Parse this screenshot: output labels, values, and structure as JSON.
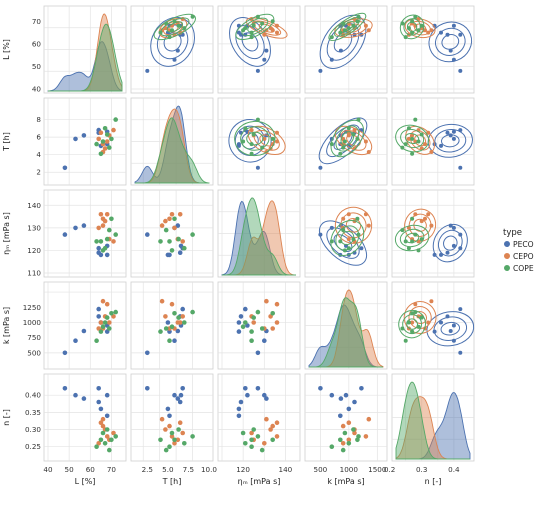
{
  "chart_data": {
    "type": "scatter",
    "plot_kind": "pair-grid",
    "variables": [
      {
        "key": "L",
        "label": "L [%]",
        "range": [
          40,
          75
        ],
        "ticks": [
          40,
          50,
          60,
          70
        ]
      },
      {
        "key": "T",
        "label": "T [h]",
        "range": [
          1,
          10
        ],
        "ticks": [
          2,
          4,
          6,
          8
        ]
      },
      {
        "key": "eta",
        "label": "ηₘ [mPa s]",
        "range": [
          110,
          145
        ],
        "ticks": [
          110,
          120,
          130,
          140
        ]
      },
      {
        "key": "k",
        "label": "k [mPa s]",
        "range": [
          300,
          1600
        ],
        "ticks": [
          500,
          1000,
          1500
        ]
      },
      {
        "key": "n",
        "label": "n [-]",
        "range": [
          0.22,
          0.45
        ],
        "ticks": [
          0.25,
          0.3,
          0.35,
          0.4
        ]
      }
    ],
    "bottom_ticks": {
      "L": [
        "40",
        "50",
        "60",
        "70"
      ],
      "T": [
        "2.5",
        "5.0",
        "7.5",
        "10.0"
      ],
      "eta": [
        "120",
        "140"
      ],
      "k": [
        "500",
        "1000",
        "1500"
      ],
      "n": [
        "0.2",
        "0.3",
        "0.4"
      ]
    },
    "left_ticks": {
      "L": [
        "40",
        "50",
        "60",
        "70"
      ],
      "T": [
        "2",
        "4",
        "6",
        "8"
      ],
      "eta": [
        "110",
        "120",
        "130",
        "140"
      ],
      "k": [
        "500",
        "750",
        "1000",
        "1250"
      ],
      "n": [
        "0.25",
        "0.30",
        "0.35",
        "0.40"
      ]
    },
    "diagonal": "kde",
    "upper_triangle": "kde-contours",
    "lower_triangle": "scatter",
    "legend": {
      "title": "type",
      "position": "right"
    },
    "series": [
      {
        "name": "PECO",
        "color": "#4c72b0",
        "points": [
          {
            "L": 48,
            "T": 2.5,
            "eta": 127,
            "k": 500,
            "n": 0.42
          },
          {
            "L": 53,
            "T": 5.8,
            "eta": 130,
            "k": 700,
            "n": 0.4
          },
          {
            "L": 57,
            "T": 6.2,
            "eta": 131,
            "k": 860,
            "n": 0.39
          },
          {
            "L": 64,
            "T": 6.8,
            "eta": 121,
            "k": 1220,
            "n": 0.42
          },
          {
            "L": 64,
            "T": 6.5,
            "eta": 119,
            "k": 1100,
            "n": 0.38
          },
          {
            "L": 65,
            "T": 5.0,
            "eta": 118,
            "k": 1000,
            "n": 0.36
          },
          {
            "L": 68,
            "T": 6.6,
            "eta": 122,
            "k": 950,
            "n": 0.4
          },
          {
            "L": 68,
            "T": 5.2,
            "eta": 118,
            "k": 850,
            "n": 0.34
          }
        ]
      },
      {
        "name": "CEPO",
        "color": "#dd8452",
        "points": [
          {
            "L": 65,
            "T": 6.5,
            "eta": 136,
            "k": 1000,
            "n": 0.32
          },
          {
            "L": 66,
            "T": 5.2,
            "eta": 134,
            "k": 900,
            "n": 0.31
          },
          {
            "L": 67,
            "T": 4.7,
            "eta": 133,
            "k": 1100,
            "n": 0.3
          },
          {
            "L": 68,
            "T": 5.5,
            "eta": 136,
            "k": 1300,
            "n": 0.28
          },
          {
            "L": 69,
            "T": 6.2,
            "eta": 125,
            "k": 1000,
            "n": 0.27
          },
          {
            "L": 66,
            "T": 4.3,
            "eta": 131,
            "k": 1350,
            "n": 0.33
          },
          {
            "L": 71,
            "T": 6.8,
            "eta": 124,
            "k": 1100,
            "n": 0.29
          },
          {
            "L": 64,
            "T": 5.8,
            "eta": 130,
            "k": 900,
            "n": 0.26
          }
        ]
      },
      {
        "name": "COPE",
        "color": "#55a868",
        "points": [
          {
            "L": 63,
            "T": 5.2,
            "eta": 124,
            "k": 700,
            "n": 0.25
          },
          {
            "L": 65,
            "T": 4.1,
            "eta": 124,
            "k": 850,
            "n": 0.27
          },
          {
            "L": 66,
            "T": 5.5,
            "eta": 120,
            "k": 930,
            "n": 0.29
          },
          {
            "L": 67,
            "T": 7.0,
            "eta": 121,
            "k": 1000,
            "n": 0.26
          },
          {
            "L": 68,
            "T": 6.3,
            "eta": 125,
            "k": 1080,
            "n": 0.3
          },
          {
            "L": 69,
            "T": 4.8,
            "eta": 129,
            "k": 900,
            "n": 0.24
          },
          {
            "L": 72,
            "T": 8.0,
            "eta": 127,
            "k": 1170,
            "n": 0.28
          },
          {
            "L": 70,
            "T": 5.8,
            "eta": 134,
            "k": 1150,
            "n": 0.27
          }
        ]
      }
    ]
  }
}
